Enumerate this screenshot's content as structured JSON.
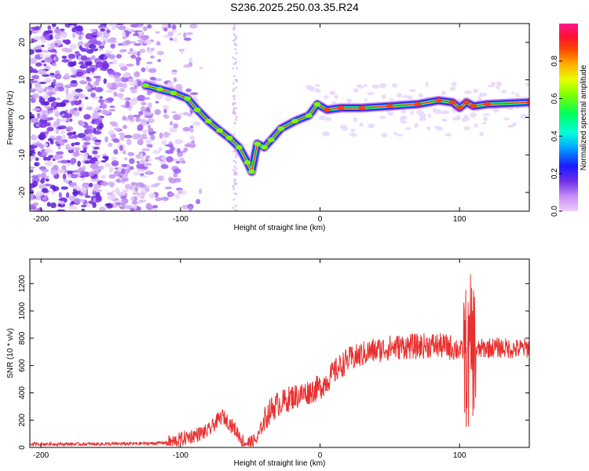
{
  "title": "S236.2025.250.03.35.R24",
  "colors": {
    "snr_line": "#e8302e",
    "axis": "#000000",
    "scatter": "#b48cf0"
  },
  "chart_data": [
    {
      "type": "heatmap",
      "name": "spectrogram",
      "title": "",
      "xlabel": "Height of straight line (km)",
      "ylabel": "Frequency (Hz)",
      "xlim": [
        -208,
        150
      ],
      "ylim": [
        -25,
        25
      ],
      "xticks": [
        -200,
        -100,
        0,
        100
      ],
      "yticks": [
        -20,
        -10,
        0,
        10,
        20
      ],
      "colorbar": {
        "label": "Normalized spectral amplitude",
        "range": [
          0,
          1
        ],
        "ticks": [
          "0.0",
          "0.2",
          "0.4",
          "0.6",
          "0.8"
        ],
        "tick_values": [
          0,
          0.2,
          0.4,
          0.6,
          0.8
        ]
      },
      "ridge": [
        {
          "x": -125,
          "y": 8.5
        },
        {
          "x": -115,
          "y": 7.5
        },
        {
          "x": -105,
          "y": 6.5
        },
        {
          "x": -95,
          "y": 5
        },
        {
          "x": -88,
          "y": 2
        },
        {
          "x": -80,
          "y": -1
        },
        {
          "x": -72,
          "y": -3.5
        },
        {
          "x": -65,
          "y": -5.5
        },
        {
          "x": -58,
          "y": -8
        },
        {
          "x": -52,
          "y": -12
        },
        {
          "x": -49,
          "y": -14.5
        },
        {
          "x": -45,
          "y": -7
        },
        {
          "x": -40,
          "y": -8
        },
        {
          "x": -35,
          "y": -6
        },
        {
          "x": -28,
          "y": -3
        },
        {
          "x": -18,
          "y": -1
        },
        {
          "x": -8,
          "y": 0.5
        },
        {
          "x": -2,
          "y": 3.5
        },
        {
          "x": 5,
          "y": 2
        },
        {
          "x": 15,
          "y": 2.5
        },
        {
          "x": 30,
          "y": 2.5
        },
        {
          "x": 50,
          "y": 3
        },
        {
          "x": 70,
          "y": 3.5
        },
        {
          "x": 85,
          "y": 4.5
        },
        {
          "x": 95,
          "y": 4
        },
        {
          "x": 100,
          "y": 2.5
        },
        {
          "x": 105,
          "y": 4
        },
        {
          "x": 110,
          "y": 3
        },
        {
          "x": 120,
          "y": 3.5
        },
        {
          "x": 150,
          "y": 4
        }
      ]
    },
    {
      "type": "line",
      "name": "snr",
      "title": "",
      "xlabel": "Height of straight line (km)",
      "ylabel": "SNR (10 * v/v)",
      "xlim": [
        -208,
        150
      ],
      "ylim": [
        0,
        1380
      ],
      "xticks": [
        -200,
        -100,
        0,
        100
      ],
      "yticks": [
        0,
        200,
        400,
        600,
        800,
        1000,
        1200
      ],
      "series": [
        {
          "name": "SNR",
          "x": [
            -208,
            -180,
            -150,
            -120,
            -105,
            -100,
            -90,
            -80,
            -75,
            -70,
            -65,
            -60,
            -55,
            -50,
            -45,
            -40,
            -35,
            -30,
            -25,
            -20,
            -15,
            -10,
            -5,
            0,
            5,
            10,
            15,
            20,
            25,
            30,
            35,
            40,
            45,
            50,
            60,
            70,
            80,
            90,
            95,
            100,
            103,
            105,
            107,
            108,
            110,
            112,
            115,
            120,
            130,
            140,
            150
          ],
          "y": [
            25,
            25,
            25,
            30,
            40,
            60,
            90,
            120,
            180,
            230,
            180,
            120,
            40,
            30,
            60,
            200,
            280,
            320,
            340,
            370,
            380,
            400,
            420,
            440,
            490,
            550,
            600,
            640,
            660,
            680,
            700,
            710,
            720,
            730,
            740,
            740,
            750,
            740,
            730,
            720,
            700,
            650,
            600,
            780,
            720,
            700,
            720,
            730,
            730,
            720,
            730
          ]
        }
      ]
    }
  ]
}
